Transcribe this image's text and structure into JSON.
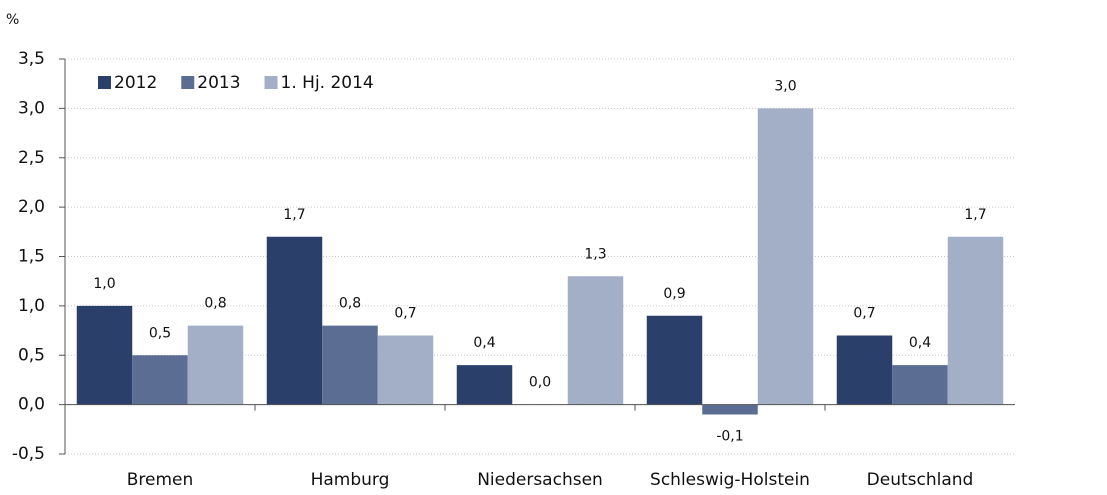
{
  "chart_data": {
    "type": "bar",
    "y_label": "%",
    "categories": [
      "Bremen",
      "Hamburg",
      "Niedersachsen",
      "Schleswig-Holstein",
      "Deutschland"
    ],
    "series": [
      {
        "name": "2012",
        "color": "#2b3f6b",
        "values": [
          1.0,
          1.7,
          0.4,
          0.9,
          0.7
        ],
        "value_labels": [
          "1,0",
          "1,7",
          "0,4",
          "0,9",
          "0,7"
        ]
      },
      {
        "name": "2013",
        "color": "#5b6d93",
        "values": [
          0.5,
          0.8,
          0.0,
          -0.1,
          0.4
        ],
        "value_labels": [
          "0,5",
          "0,8",
          "0,0",
          "-0,1",
          "0,4"
        ]
      },
      {
        "name": "1. Hj. 2014",
        "color": "#a3afc7",
        "values": [
          0.8,
          0.7,
          1.3,
          3.0,
          1.7
        ],
        "value_labels": [
          "0,8",
          "0,7",
          "1,3",
          "3,0",
          "1,7"
        ]
      }
    ],
    "ylim": [
      -0.5,
      3.5
    ],
    "yticks": [
      {
        "value": -0.5,
        "label": "-0,5"
      },
      {
        "value": 0,
        "label": "0,0"
      },
      {
        "value": 0.5,
        "label": "0,5"
      },
      {
        "value": 1,
        "label": "1,0"
      },
      {
        "value": 1.5,
        "label": "1,5"
      },
      {
        "value": 2,
        "label": "2,0"
      },
      {
        "value": 2.5,
        "label": "2,5"
      },
      {
        "value": 3,
        "label": "3,0"
      },
      {
        "value": 3.5,
        "label": "3,5"
      }
    ],
    "grid": true,
    "legend": "top-left"
  }
}
